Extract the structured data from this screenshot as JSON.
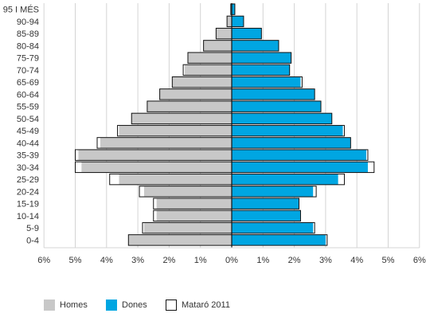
{
  "chart_data": {
    "type": "bar",
    "orientation": "horizontal",
    "categories": [
      "0-4",
      "5-9",
      "10-14",
      "15-19",
      "20-24",
      "25-29",
      "30-34",
      "35-39",
      "40-44",
      "45-49",
      "50-54",
      "55-59",
      "60-64",
      "65-69",
      "70-74",
      "75-79",
      "80-84",
      "85-89",
      "90-94",
      "95 I MÉS"
    ],
    "x_tick_labels": [
      "6%",
      "5%",
      "4%",
      "3%",
      "2%",
      "1%",
      "0%",
      "1%",
      "2%",
      "3%",
      "4%",
      "5%",
      "6%"
    ],
    "xlim": [
      -6,
      6
    ],
    "x_unit": "%",
    "grid": "vertical",
    "legend_position": "bottom",
    "series": [
      {
        "name": "Homes",
        "color": "#c8c8c8",
        "side": "left",
        "values": [
          3.3,
          2.8,
          2.4,
          2.4,
          2.8,
          3.6,
          4.8,
          4.9,
          4.2,
          3.6,
          3.2,
          2.7,
          2.3,
          1.9,
          1.5,
          1.4,
          0.9,
          0.5,
          0.15,
          0.03
        ]
      },
      {
        "name": "Dones",
        "color": "#00a6e2",
        "side": "right",
        "values": [
          3.0,
          2.6,
          2.2,
          2.15,
          2.6,
          3.4,
          4.35,
          4.3,
          3.8,
          3.55,
          3.2,
          2.85,
          2.65,
          2.2,
          1.85,
          1.9,
          1.5,
          0.95,
          0.38,
          0.1
        ]
      },
      {
        "name": "Mataró 2011",
        "type": "outline",
        "color": "#111111",
        "values_left": [
          3.3,
          2.85,
          2.5,
          2.5,
          2.95,
          3.9,
          5.0,
          5.0,
          4.3,
          3.65,
          3.2,
          2.7,
          2.3,
          1.9,
          1.55,
          1.4,
          0.9,
          0.5,
          0.15,
          0.03
        ],
        "values_right": [
          3.05,
          2.65,
          2.2,
          2.15,
          2.7,
          3.6,
          4.55,
          4.35,
          3.8,
          3.6,
          3.2,
          2.85,
          2.65,
          2.25,
          1.85,
          1.9,
          1.5,
          0.95,
          0.38,
          0.1
        ]
      }
    ]
  },
  "legend": {
    "homes": {
      "label": "Homes",
      "color": "#c8c8c8"
    },
    "dones": {
      "label": "Dones",
      "color": "#00a6e2"
    },
    "mataro": {
      "label": "Mataró 2011",
      "color": "#111111"
    }
  }
}
